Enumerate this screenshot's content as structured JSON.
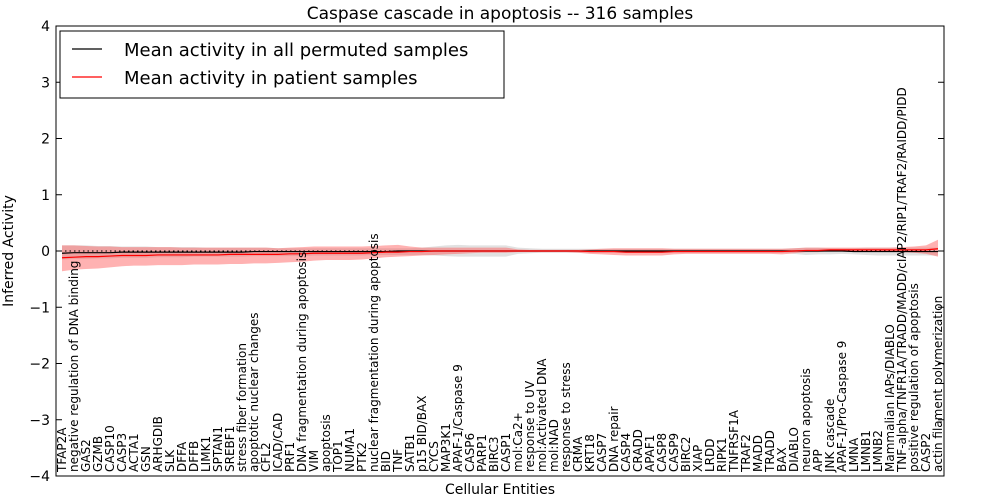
{
  "chart_data": {
    "type": "line",
    "title": "Caspase cascade in apoptosis -- 316 samples",
    "xlabel": "Cellular Entities",
    "ylabel": "Inferred Activity",
    "ylim": [
      -4,
      4
    ],
    "yticks": [
      -4,
      -3,
      -2,
      -1,
      0,
      1,
      2,
      3,
      4
    ],
    "ytick_labels": [
      "−4",
      "−3",
      "−2",
      "−1",
      "0",
      "1",
      "2",
      "3",
      "4"
    ],
    "grid": false,
    "legend_position": "top-left",
    "categories": [
      "TFAP2A",
      "negative regulation of DNA binding",
      "GAS2",
      "GZMB",
      "CASP10",
      "CASP3",
      "ACTA1",
      "GSN",
      "ARHGDIB",
      "SLK",
      "DFFA",
      "DFFB",
      "LIMK1",
      "SPTAN1",
      "SREBF1",
      "stress fiber formation",
      "apoptotic nuclear changes",
      "CFL2",
      "ICAD/CAD",
      "PRF1",
      "DNA fragmentation during apoptosis",
      "VIM",
      "apoptosis",
      "TOP1",
      "NUMA1",
      "PTK2",
      "nuclear fragmentation during apoptosis",
      "BID",
      "TNF",
      "SATB1",
      "p15 BID/BAX",
      "CYCS",
      "MAP3K1",
      "APAF-1/Caspase 9",
      "CASP6",
      "PARP1",
      "BIRC3",
      "CASP1",
      "mol:Ca2+",
      "response to UV",
      "mol:Activated DNA",
      "mol:NAD",
      "response to stress",
      "CRMA",
      "KRT18",
      "CASP7",
      "DNA repair",
      "CASP4",
      "CRADD",
      "APAF1",
      "CASP8",
      "CASP9",
      "BIRC2",
      "XIAP",
      "LRDD",
      "RIPK1",
      "TNFRSF1A",
      "TRAF2",
      "MADD",
      "TRADD",
      "BAX",
      "DIABLO",
      "neuron apoptosis",
      "APP",
      "JNK cascade",
      "APAF-1/Pro-Caspase 9",
      "LMNA",
      "LMNB1",
      "LMNB2",
      "Mammalian IAPs/DIABLO",
      "TNF-alpha/TNFR1A/TRADD/MADD/cIAP2/RIP1/TRAF2/RAIDD/PIDD",
      "positive regulation of apoptosis",
      "CASP2",
      "actin filament polymerization"
    ],
    "series": [
      {
        "name": "Mean activity in all permuted samples",
        "color": "#000000",
        "values": [
          -0.04,
          -0.03,
          -0.03,
          -0.03,
          -0.03,
          -0.02,
          -0.02,
          -0.02,
          -0.02,
          -0.02,
          -0.02,
          -0.02,
          -0.02,
          -0.02,
          -0.02,
          -0.02,
          -0.01,
          -0.01,
          -0.01,
          -0.01,
          -0.01,
          -0.01,
          -0.01,
          -0.01,
          -0.01,
          -0.01,
          -0.01,
          -0.01,
          0,
          0,
          0,
          0,
          0,
          0,
          0,
          0,
          0,
          0,
          0,
          0,
          0,
          0,
          0,
          0,
          0,
          0,
          0,
          0,
          0,
          0,
          0,
          0,
          0,
          0,
          0,
          0,
          0,
          0,
          0,
          0,
          0,
          0,
          0,
          0,
          0,
          0,
          -0.01,
          -0.01,
          -0.01,
          -0.01,
          -0.01,
          -0.01,
          -0.01,
          -0.01
        ],
        "band_low": [
          -0.15,
          -0.14,
          -0.14,
          -0.13,
          -0.13,
          -0.12,
          -0.12,
          -0.12,
          -0.11,
          -0.11,
          -0.11,
          -0.1,
          -0.1,
          -0.1,
          -0.1,
          -0.1,
          -0.09,
          -0.09,
          -0.09,
          -0.09,
          -0.09,
          -0.08,
          -0.08,
          -0.08,
          -0.08,
          -0.08,
          -0.07,
          -0.07,
          -0.07,
          -0.07,
          -0.07,
          -0.08,
          -0.09,
          -0.1,
          -0.1,
          -0.1,
          -0.1,
          -0.1,
          -0.05,
          -0.04,
          -0.03,
          -0.03,
          -0.03,
          -0.03,
          -0.03,
          -0.03,
          -0.03,
          -0.03,
          -0.03,
          -0.03,
          -0.03,
          -0.03,
          -0.03,
          -0.03,
          -0.03,
          -0.03,
          -0.03,
          -0.03,
          -0.03,
          -0.03,
          -0.03,
          -0.05,
          -0.07,
          -0.06,
          -0.06,
          -0.05,
          -0.06,
          -0.07,
          -0.08,
          -0.08,
          -0.08,
          -0.08,
          -0.08,
          -0.08
        ],
        "band_high": [
          0.1,
          0.1,
          0.1,
          0.09,
          0.09,
          0.08,
          0.08,
          0.08,
          0.07,
          0.07,
          0.07,
          0.07,
          0.06,
          0.06,
          0.06,
          0.06,
          0.06,
          0.06,
          0.05,
          0.05,
          0.05,
          0.05,
          0.05,
          0.05,
          0.05,
          0.05,
          0.05,
          0.05,
          0.05,
          0.05,
          0.06,
          0.08,
          0.1,
          0.11,
          0.1,
          0.1,
          0.1,
          0.1,
          0.06,
          0.05,
          0.04,
          0.04,
          0.04,
          0.04,
          0.04,
          0.04,
          0.04,
          0.04,
          0.04,
          0.04,
          0.04,
          0.04,
          0.04,
          0.04,
          0.04,
          0.04,
          0.04,
          0.04,
          0.04,
          0.04,
          0.04,
          0.05,
          0.06,
          0.06,
          0.05,
          0.05,
          0.05,
          0.06,
          0.06,
          0.06,
          0.06,
          0.06,
          0.06,
          0.06
        ]
      },
      {
        "name": "Mean activity in patient samples",
        "color": "#ff0000",
        "values": [
          -0.12,
          -0.11,
          -0.1,
          -0.1,
          -0.09,
          -0.08,
          -0.08,
          -0.08,
          -0.07,
          -0.07,
          -0.07,
          -0.07,
          -0.07,
          -0.07,
          -0.06,
          -0.06,
          -0.06,
          -0.06,
          -0.06,
          -0.05,
          -0.05,
          -0.04,
          -0.04,
          -0.04,
          -0.04,
          -0.04,
          -0.03,
          -0.02,
          -0.02,
          -0.01,
          -0.01,
          0,
          0,
          0,
          0,
          0,
          0,
          0,
          0,
          0,
          0,
          0,
          0,
          0,
          -0.01,
          -0.01,
          -0.01,
          -0.02,
          -0.02,
          -0.02,
          -0.02,
          -0.01,
          -0.01,
          -0.01,
          -0.01,
          -0.01,
          -0.01,
          -0.01,
          -0.01,
          -0.01,
          -0.01,
          0,
          0.01,
          0.01,
          0.02,
          0.02,
          0.02,
          0.02,
          0.02,
          0.02,
          0.02,
          0.02,
          0.02,
          0.04
        ],
        "band_low": [
          -0.36,
          -0.33,
          -0.32,
          -0.31,
          -0.29,
          -0.27,
          -0.26,
          -0.26,
          -0.25,
          -0.25,
          -0.25,
          -0.24,
          -0.24,
          -0.24,
          -0.23,
          -0.23,
          -0.22,
          -0.22,
          -0.21,
          -0.2,
          -0.19,
          -0.17,
          -0.16,
          -0.16,
          -0.16,
          -0.15,
          -0.13,
          -0.11,
          -0.1,
          -0.09,
          -0.08,
          -0.07,
          -0.06,
          -0.05,
          -0.04,
          -0.03,
          -0.03,
          -0.03,
          -0.02,
          -0.02,
          -0.02,
          -0.02,
          -0.02,
          -0.03,
          -0.05,
          -0.06,
          -0.07,
          -0.08,
          -0.08,
          -0.08,
          -0.08,
          -0.06,
          -0.05,
          -0.05,
          -0.05,
          -0.05,
          -0.05,
          -0.05,
          -0.05,
          -0.05,
          -0.06,
          -0.04,
          -0.02,
          -0.02,
          0,
          0,
          0,
          0,
          0,
          -0.01,
          -0.02,
          -0.03,
          -0.05,
          -0.1
        ],
        "band_high": [
          0.1,
          0.1,
          0.09,
          0.08,
          0.08,
          0.07,
          0.07,
          0.07,
          0.07,
          0.07,
          0.06,
          0.06,
          0.06,
          0.06,
          0.06,
          0.06,
          0.06,
          0.06,
          0.05,
          0.06,
          0.07,
          0.08,
          0.08,
          0.08,
          0.08,
          0.08,
          0.09,
          0.1,
          0.11,
          0.08,
          0.06,
          0.06,
          0.06,
          0.06,
          0.06,
          0.06,
          0.06,
          0.06,
          0.03,
          0.02,
          0.02,
          0.02,
          0.02,
          0.02,
          0.03,
          0.04,
          0.05,
          0.05,
          0.05,
          0.05,
          0.05,
          0.04,
          0.04,
          0.04,
          0.04,
          0.04,
          0.04,
          0.04,
          0.04,
          0.04,
          0.04,
          0.05,
          0.06,
          0.06,
          0.06,
          0.06,
          0.06,
          0.06,
          0.06,
          0.06,
          0.07,
          0.08,
          0.1,
          0.2
        ]
      }
    ],
    "band_colors": [
      "#c8c8c8",
      "#ff5555"
    ]
  }
}
